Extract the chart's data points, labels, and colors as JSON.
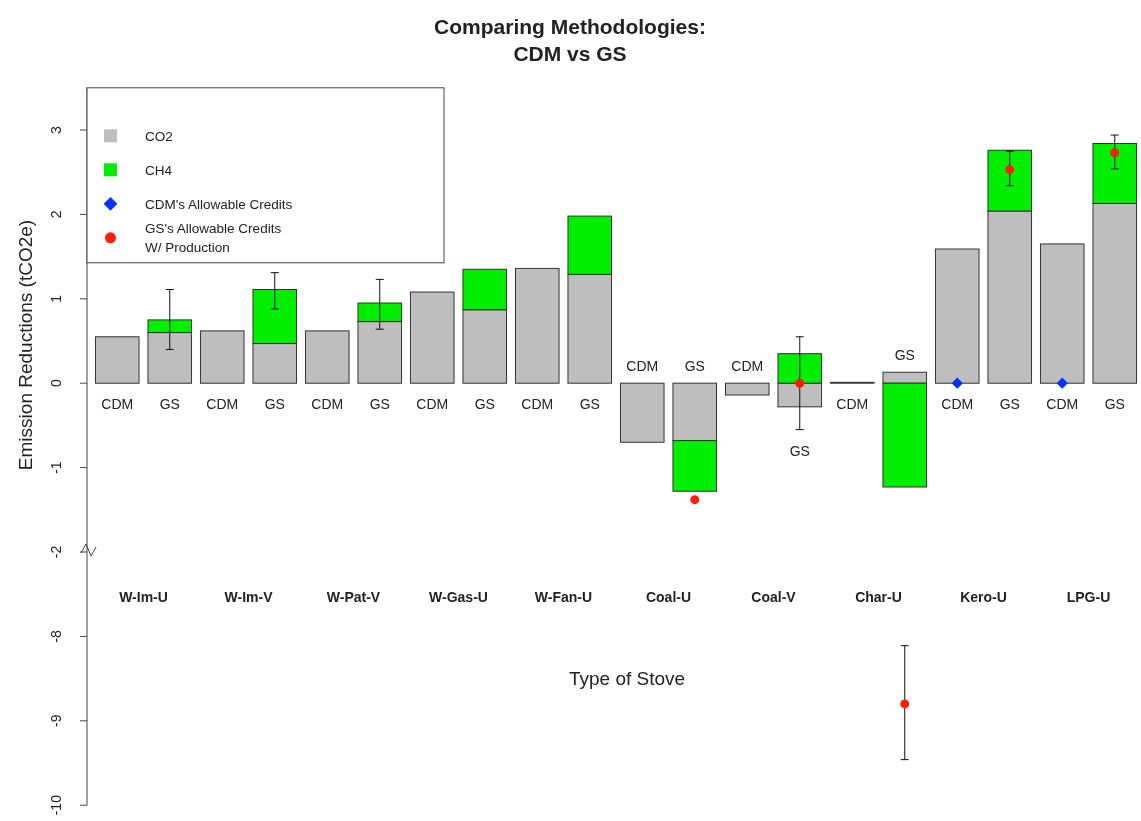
{
  "chart_data": [
    {
      "type": "bar",
      "title": "Comparing Methodologies:\nCDM vs  GS",
      "ylabel": "Emission Reductions (tCO2e)",
      "categories": [
        "CDM",
        "GS",
        "CDM",
        "GS",
        "CDM",
        "GS",
        "CDM",
        "GS",
        "CDM",
        "GS",
        "CDM",
        "GS",
        "CDM",
        "GS",
        "CDM",
        "GS",
        "CDM",
        "GS",
        "CDM",
        "GS"
      ],
      "stacked": true,
      "series": [
        {
          "name": "CO2",
          "color": "#bebebe",
          "values": [
            0.55,
            0.6,
            0.62,
            0.47,
            0.62,
            0.73,
            1.08,
            0.87,
            1.36,
            1.29,
            -0.7,
            -0.68,
            -0.14,
            -0.28,
            0.01,
            0.13,
            1.59,
            2.04,
            1.65,
            2.13
          ]
        },
        {
          "name": "CH4",
          "color": "#00ee00",
          "values": [
            null,
            0.15,
            null,
            0.64,
            null,
            0.22,
            null,
            0.48,
            null,
            0.69,
            null,
            -0.6,
            null,
            0.35,
            null,
            -1.23,
            null,
            0.72,
            null,
            0.71
          ],
          "errors": [
            null,
            [
              0.4,
              1.11
            ],
            null,
            [
              0.88,
              1.31
            ],
            null,
            [
              0.64,
              1.23
            ],
            null,
            null,
            null,
            null,
            null,
            null,
            null,
            null,
            null,
            null,
            null,
            null,
            null,
            null
          ]
        },
        {
          "name": "CDM's Allowable Credits",
          "type": "scatter",
          "marker": "diamond",
          "color": "#0033ff",
          "values": [
            null,
            null,
            null,
            null,
            null,
            null,
            null,
            null,
            null,
            null,
            null,
            null,
            null,
            null,
            null,
            null,
            0,
            null,
            0,
            null
          ]
        },
        {
          "name": "GS's Allowable Credits\nW/ Production",
          "type": "scatter",
          "marker": "circle",
          "color": "#ff2000",
          "values": [
            null,
            null,
            null,
            null,
            null,
            null,
            null,
            null,
            null,
            null,
            null,
            -1.38,
            null,
            0,
            null,
            null,
            null,
            2.53,
            null,
            2.73
          ],
          "errors": [
            null,
            null,
            null,
            null,
            null,
            null,
            null,
            null,
            null,
            null,
            null,
            null,
            null,
            0.55,
            null,
            null,
            null,
            [
              2.34,
              2.75
            ],
            null,
            [
              2.54,
              2.94
            ]
          ]
        }
      ],
      "ylim": [
        -2,
        3.5
      ],
      "yticks": [
        -2,
        -1,
        0,
        1,
        2,
        3
      ],
      "legend": "top left"
    },
    {
      "type": "scatter",
      "xlabel": "Type of Stove",
      "categories": [
        null,
        null,
        null,
        null,
        null,
        null,
        null,
        null,
        null,
        null,
        null,
        null,
        null,
        null,
        null,
        null,
        null,
        null,
        null,
        null
      ],
      "series": [
        {
          "color": "#ff2000",
          "marker": "circle",
          "values": [
            null,
            null,
            null,
            null,
            null,
            null,
            null,
            null,
            null,
            null,
            null,
            null,
            null,
            null,
            null,
            -8.8,
            null,
            null,
            null,
            null
          ],
          "errors": [
            null,
            null,
            null,
            null,
            null,
            null,
            null,
            null,
            null,
            null,
            null,
            null,
            null,
            null,
            null,
            [
              -9.46,
              -8.11
            ],
            null,
            null,
            null,
            null
          ]
        }
      ],
      "ylim": [
        -10,
        -7
      ],
      "yticks": [
        -10,
        -9,
        -8
      ],
      "tick_labels": "y",
      "annotations": [
        "W-Im-U",
        "W-Im-V",
        "W-Pat-V",
        "W-Gas-U",
        "W-Fan-U",
        "Coal-U",
        "Coal-V",
        "Char-U",
        "Kero-U",
        "LPG-U"
      ]
    }
  ]
}
